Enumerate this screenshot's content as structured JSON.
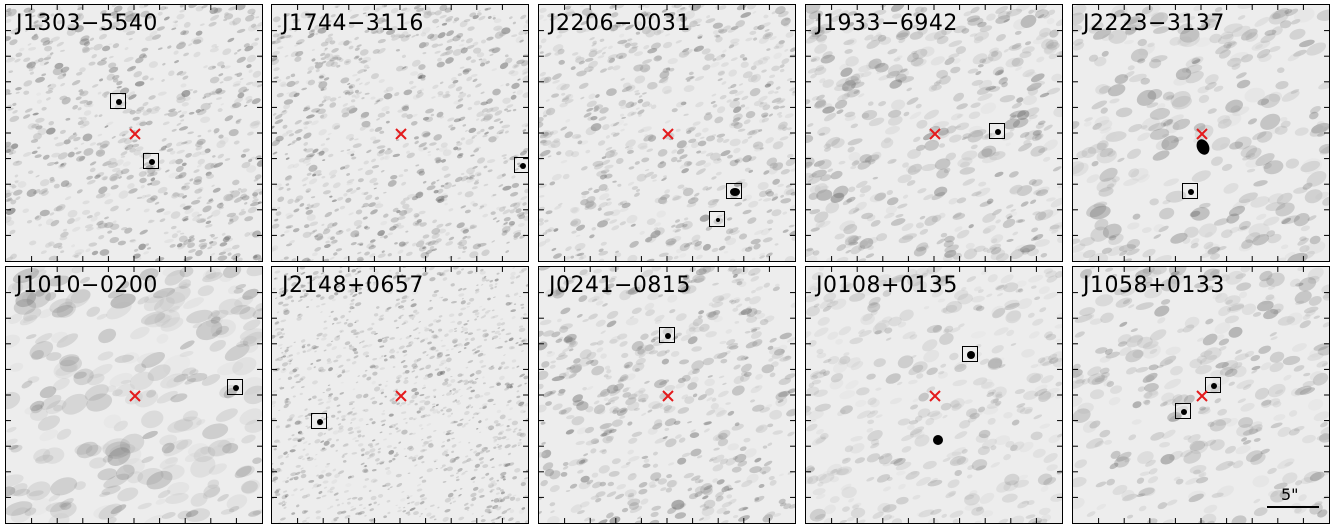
{
  "panels": [
    {
      "label": "J1303−5540"
    },
    {
      "label": "J1744−3116"
    },
    {
      "label": "J2206−0031"
    },
    {
      "label": "J1933−6942"
    },
    {
      "label": "J2223−3137"
    },
    {
      "label": "J1010−0200"
    },
    {
      "label": "J2148+0657"
    },
    {
      "label": "J0241−0815"
    },
    {
      "label": "J0108+0135"
    },
    {
      "label": "J1058+0133"
    }
  ],
  "scalebar": {
    "label": "5\""
  },
  "colors": {
    "cross": "#e41a1c",
    "box": "#000000",
    "noise_dark": "#333333"
  }
}
